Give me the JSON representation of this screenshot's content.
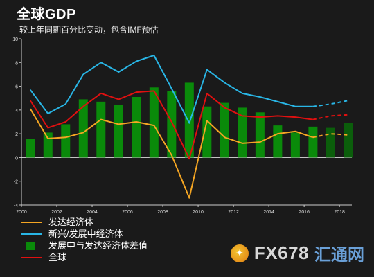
{
  "title": "全球GDP",
  "subtitle": "较上年同期百分比变动，包含IMF预估",
  "colors": {
    "advanced": "#f5a623",
    "emerging": "#29b6e6",
    "difference": "#0a8a0a",
    "world": "#e01010",
    "axis": "#cccccc"
  },
  "chart_data": {
    "type": "bar+line",
    "x": [
      2000,
      2001,
      2002,
      2003,
      2004,
      2005,
      2006,
      2007,
      2008,
      2009,
      2010,
      2011,
      2012,
      2013,
      2014,
      2015,
      2016,
      2017,
      2018
    ],
    "forecast_from": 2016,
    "xticks": [
      2000,
      2002,
      2004,
      2006,
      2008,
      2010,
      2012,
      2014,
      2016,
      2018
    ],
    "ylim": [
      -4,
      10
    ],
    "yticks": [
      -4,
      -2,
      0,
      2,
      4,
      6,
      8,
      10
    ],
    "grid": false,
    "legend_position": "bottom-left",
    "series": [
      {
        "key": "advanced",
        "name": "发达经济体",
        "type": "line",
        "values": [
          4.1,
          1.6,
          1.7,
          2.1,
          3.2,
          2.8,
          3.0,
          2.7,
          0.2,
          -3.4,
          3.1,
          1.7,
          1.2,
          1.3,
          2.0,
          2.2,
          1.7,
          2.0,
          1.9
        ]
      },
      {
        "key": "emerging",
        "name": "新兴/发展中经济体",
        "type": "line",
        "values": [
          5.7,
          3.7,
          4.5,
          7.0,
          8.0,
          7.2,
          8.1,
          8.6,
          5.8,
          2.9,
          7.4,
          6.3,
          5.4,
          5.1,
          4.7,
          4.3,
          4.3,
          4.5,
          4.8
        ]
      },
      {
        "key": "difference",
        "name": "发展中与发达经济体差值",
        "type": "bar",
        "values": [
          1.6,
          2.1,
          2.8,
          4.9,
          4.7,
          4.4,
          5.1,
          5.9,
          5.6,
          6.3,
          4.3,
          4.6,
          4.2,
          3.8,
          2.7,
          2.1,
          2.6,
          2.5,
          2.9
        ]
      },
      {
        "key": "world",
        "name": "全球",
        "type": "line",
        "values": [
          4.8,
          2.5,
          3.0,
          4.3,
          5.4,
          4.9,
          5.5,
          5.6,
          3.0,
          -0.1,
          5.4,
          4.2,
          3.5,
          3.4,
          3.5,
          3.4,
          3.2,
          3.5,
          3.6
        ]
      }
    ]
  },
  "watermark": {
    "brand": "FX678",
    "cn": "汇通网"
  }
}
